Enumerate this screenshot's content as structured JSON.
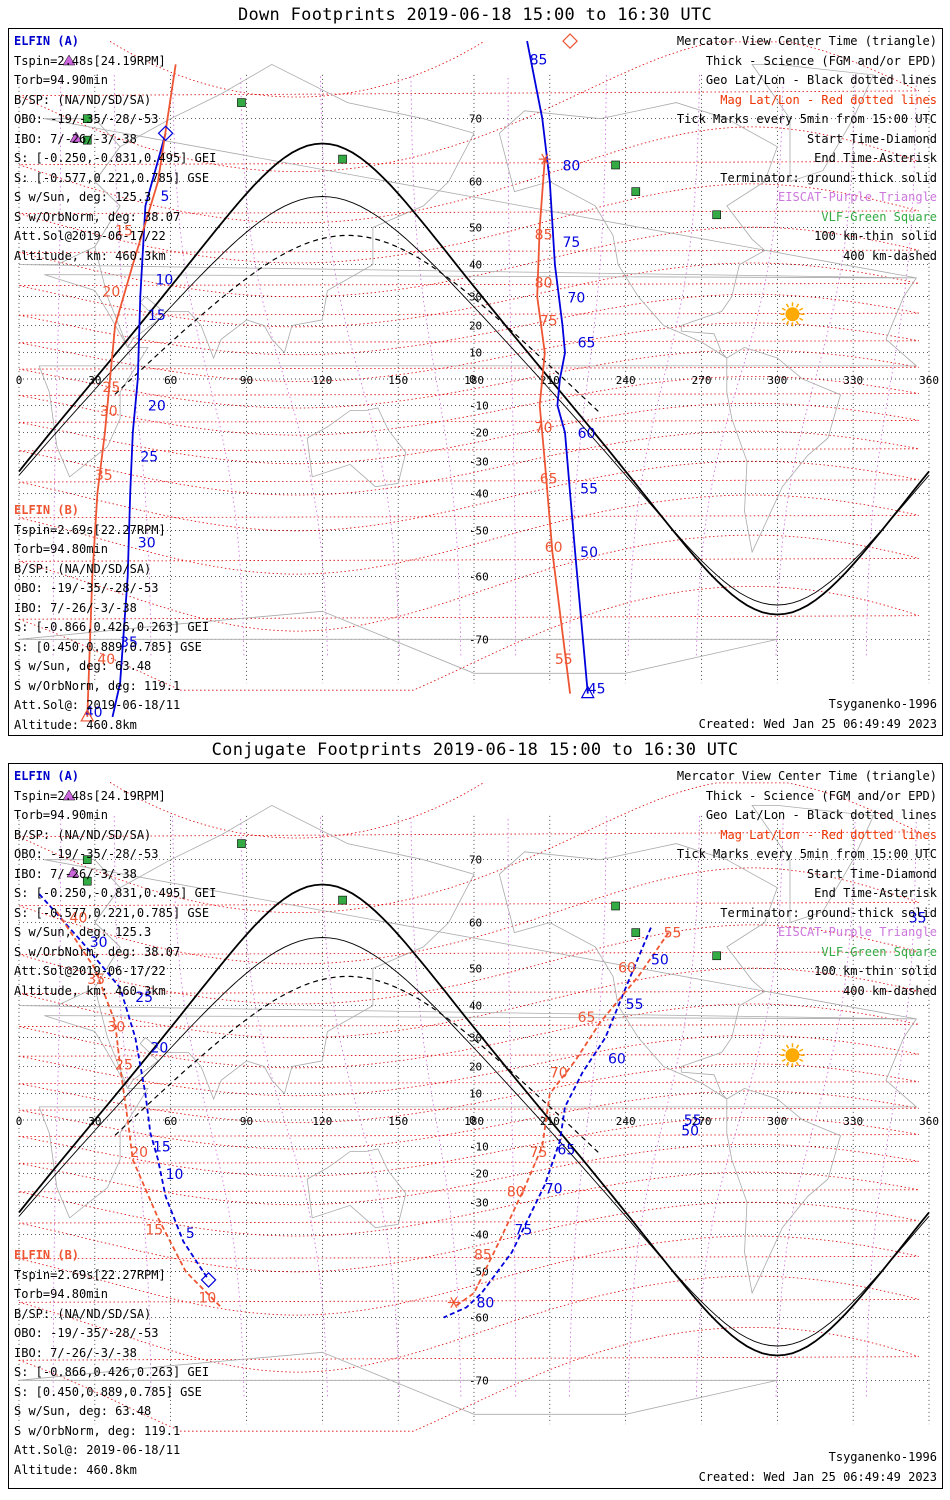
{
  "panels": [
    {
      "title": "Down Footprints 2019-06-18 15:00 to 16:30 UTC",
      "kind": "down",
      "elfin_a": {
        "name": "ELFIN (A)",
        "lines": [
          "Tspin=2.48s[24.19RPM]",
          "Torb=94.90min",
          "B/SP: (NA/ND/SD/SA)",
          "OBO: -19/-35/-28/-53",
          "IBO: 7/-26/-3/-38",
          "S: [-0.250,-0.831,0.495] GEI",
          "S: [-0.577,0.221,0.785] GSE",
          "S w/Sun, deg: 125.3",
          "S w/OrbNorm, deg: 38.07",
          "Att.Sol@2019-06-17/22",
          "Altitude, km: 460.3km"
        ]
      },
      "elfin_b": {
        "name": "ELFIN (B)",
        "lines": [
          "Tspin=2.69s[22.27RPM]",
          "Torb=94.80min",
          "B/SP: (NA/ND/SD/SA)",
          "OBO: -19/-35/-28/-53",
          "IBO: 7/-26/-3/-38",
          "S: [-0.866,0.426,0.263] GEI",
          "S: [0.450,0.889,0.785] GSE",
          "S w/Sun, deg: 63.48",
          "S w/OrbNorm, deg: 119.1",
          "Att.Sol@: 2019-06-18/11",
          "Altitude: 460.8km"
        ]
      },
      "legend": [
        "Mercator View Center Time (triangle)",
        "Thick - Science (FGM and/or EPD)",
        "Geo Lat/Lon - Black dotted lines",
        "Mag Lat/Lon - Red dotted lines",
        "Tick Marks every 5min from 15:00 UTC",
        "Start Time-Diamond",
        "End Time-Asterisk",
        "Terminator: ground-thick solid",
        "EISCAT-Purple Triangle",
        "VLF-Green Square",
        "100 km-thin solid",
        "400 km-dashed"
      ],
      "model": "Tsyganenko-1996",
      "created": "Created: Wed Jan 25 06:49:49 2023",
      "lat_labels": [
        "70",
        "60",
        "50",
        "40",
        "30",
        "20",
        "10",
        "0",
        "-10",
        "-20",
        "-30",
        "-40",
        "-50",
        "-60",
        "-70"
      ],
      "lon_labels": [
        "0",
        "30",
        "60",
        "90",
        "120",
        "150",
        "180",
        "210",
        "240",
        "270",
        "300",
        "330",
        "360"
      ],
      "tick_labels_a": [
        {
          "t": "85",
          "lon": 202,
          "lat": 76
        },
        {
          "t": "80",
          "lon": 215,
          "lat": 62
        },
        {
          "t": "75",
          "lon": 215,
          "lat": 45
        },
        {
          "t": "70",
          "lon": 217,
          "lat": 28
        },
        {
          "t": "65",
          "lon": 221,
          "lat": 12
        },
        {
          "t": "60",
          "lon": 221,
          "lat": -22
        },
        {
          "t": "55",
          "lon": 222,
          "lat": -40
        },
        {
          "t": "50",
          "lon": 222,
          "lat": -56
        },
        {
          "t": "45",
          "lon": 225,
          "lat": -76
        },
        {
          "t": "5",
          "lon": 56,
          "lat": 56
        },
        {
          "t": "10",
          "lon": 54,
          "lat": 34
        },
        {
          "t": "15",
          "lon": 51,
          "lat": 22
        },
        {
          "t": "20",
          "lon": 51,
          "lat": -12
        },
        {
          "t": "25",
          "lon": 48,
          "lat": -30
        },
        {
          "t": "30",
          "lon": 47,
          "lat": -54
        },
        {
          "t": "35",
          "lon": 40,
          "lat": -71
        },
        {
          "t": "40",
          "lon": 26,
          "lat": -78
        }
      ],
      "tick_labels_b": [
        {
          "t": "85",
          "lon": 204,
          "lat": 47
        },
        {
          "t": "80",
          "lon": 204,
          "lat": 33
        },
        {
          "t": "75",
          "lon": 206,
          "lat": 20
        },
        {
          "t": "70",
          "lon": 204,
          "lat": -20
        },
        {
          "t": "65",
          "lon": 206,
          "lat": -37
        },
        {
          "t": "60",
          "lon": 208,
          "lat": -55
        },
        {
          "t": "55",
          "lon": 212,
          "lat": -73
        },
        {
          "t": "15",
          "lon": 38,
          "lat": 48
        },
        {
          "t": "20",
          "lon": 33,
          "lat": 30
        },
        {
          "t": "25",
          "lon": 33,
          "lat": -5
        },
        {
          "t": "30",
          "lon": 32,
          "lat": -14
        },
        {
          "t": "35",
          "lon": 30,
          "lat": -36
        },
        {
          "t": "40",
          "lon": 31,
          "lat": -73
        }
      ]
    },
    {
      "title": "Conjugate Footprints 2019-06-18 15:00 to 16:30 UTC",
      "kind": "conj",
      "elfin_a": {
        "name": "ELFIN (A)",
        "lines": [
          "Tspin=2.48s[24.19RPM]",
          "Torb=94.90min",
          "B/SP: (NA/ND/SD/SA)",
          "OBO: -19/-35/-28/-53",
          "IBO: 7/-26/-3/-38",
          "S: [-0.250,-0.831,0.495] GEI",
          "S: [-0.577,0.221,0.785] GSE",
          "S w/Sun, deg: 125.3",
          "S w/OrbNorm, deg: 38.07",
          "Att.Sol@2019-06-17/22",
          "Altitude, km: 460.3km"
        ]
      },
      "elfin_b": {
        "name": "ELFIN (B)",
        "lines": [
          "Tspin=2.69s[22.27RPM]",
          "Torb=94.80min",
          "B/SP: (NA/ND/SD/SA)",
          "OBO: -19/-35/-28/-53",
          "IBO: 7/-26/-3/-38",
          "S: [-0.866,0.426,0.263] GEI",
          "S: [0.450,0.889,0.785] GSE",
          "S w/Sun, deg: 63.48",
          "S w/OrbNorm, deg: 119.1",
          "Att.Sol@: 2019-06-18/11",
          "Altitude: 460.8km"
        ]
      },
      "legend": [
        "Mercator View Center Time (triangle)",
        "Thick - Science (FGM and/or EPD)",
        "Geo Lat/Lon - Black dotted lines",
        "Mag Lat/Lon - Red dotted lines",
        "Tick Marks every 5min from 15:00 UTC",
        "Start Time-Diamond",
        "End Time-Asterisk",
        "Terminator: ground-thick solid",
        "EISCAT-Purple Triangle",
        "VLF-Green Square",
        "100 km-thin solid",
        "400 km-dashed"
      ],
      "model": "Tsyganenko-1996",
      "created": "Created: Wed Jan 25 06:49:49 2023",
      "lat_labels": [
        "70",
        "60",
        "50",
        "40",
        "30",
        "20",
        "10",
        "0",
        "-10",
        "-20",
        "-30",
        "-40",
        "-50",
        "-60",
        "-70"
      ],
      "lon_labels": [
        "0",
        "30",
        "60",
        "90",
        "120",
        "150",
        "180",
        "210",
        "240",
        "270",
        "300",
        "330",
        "360"
      ],
      "tick_labels_a": [
        {
          "t": "55",
          "lon": 263,
          "lat": -2
        },
        {
          "t": "50",
          "lon": 262,
          "lat": -6
        },
        {
          "t": "5",
          "lon": 66,
          "lat": -41
        },
        {
          "t": "10",
          "lon": 58,
          "lat": -22
        },
        {
          "t": "15",
          "lon": 53,
          "lat": -12
        },
        {
          "t": "20",
          "lon": 52,
          "lat": 25
        },
        {
          "t": "25",
          "lon": 46,
          "lat": 41
        },
        {
          "t": "30",
          "lon": 28,
          "lat": 55
        },
        {
          "t": "35",
          "lon": 352,
          "lat": 60
        },
        {
          "t": "50",
          "lon": 250,
          "lat": 51
        },
        {
          "t": "55",
          "lon": 240,
          "lat": 39
        },
        {
          "t": "60",
          "lon": 233,
          "lat": 21
        },
        {
          "t": "65",
          "lon": 213,
          "lat": -13
        },
        {
          "t": "70",
          "lon": 208,
          "lat": -27
        },
        {
          "t": "75",
          "lon": 196,
          "lat": -40
        },
        {
          "t": "80",
          "lon": 181,
          "lat": -58
        }
      ],
      "tick_labels_b": [
        {
          "t": "55",
          "lon": 255,
          "lat": 57
        },
        {
          "t": "60",
          "lon": 237,
          "lat": 49
        },
        {
          "t": "65",
          "lon": 221,
          "lat": 35
        },
        {
          "t": "70",
          "lon": 210,
          "lat": 16
        },
        {
          "t": "75",
          "lon": 202,
          "lat": -14
        },
        {
          "t": "80",
          "lon": 193,
          "lat": -28
        },
        {
          "t": "85",
          "lon": 180,
          "lat": -47
        },
        {
          "t": "10",
          "lon": 71,
          "lat": -57
        },
        {
          "t": "15",
          "lon": 50,
          "lat": -40
        },
        {
          "t": "20",
          "lon": 44,
          "lat": -14
        },
        {
          "t": "25",
          "lon": 38,
          "lat": 19
        },
        {
          "t": "30",
          "lon": 35,
          "lat": 32
        },
        {
          "t": "35",
          "lon": 27,
          "lat": 46
        },
        {
          "t": "40",
          "lon": 20,
          "lat": 60
        }
      ]
    }
  ],
  "colors": {
    "elfin_a": "#0000dd",
    "elfin_b": "#ee5533",
    "mag_grid": "#dd0000",
    "geo_grid": "#000000",
    "eiscat": "#cc66dd",
    "vlf": "#33aa44",
    "sun": "#ffaa00",
    "coast": "#aaaaaa"
  }
}
